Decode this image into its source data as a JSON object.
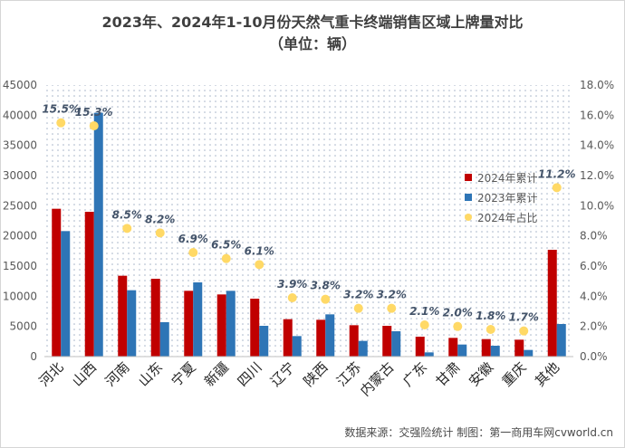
{
  "title_line1": "2023年、2024年1-10月份天然气重卡终端销售区域上牌量对比",
  "title_line2": "（单位：辆）",
  "source": "数据来源：交强险统计  制图：第一商用车网cvworld.cn",
  "colors": {
    "series_2024": "#c00000",
    "series_2023": "#2e75b6",
    "series_share": "#ffd966",
    "share_label": "#44546a",
    "axis_text": "#595959"
  },
  "chart_data": {
    "type": "bar",
    "categories": [
      "河北",
      "山西",
      "河南",
      "山东",
      "宁夏",
      "新疆",
      "四川",
      "辽宁",
      "陕西",
      "江苏",
      "内蒙古",
      "广东",
      "甘肃",
      "安徽",
      "重庆",
      "其他"
    ],
    "series": [
      {
        "name": "2024年累计",
        "values": [
          24500,
          24000,
          13400,
          12900,
          10900,
          10300,
          9600,
          6200,
          6100,
          5200,
          5100,
          3300,
          3100,
          2900,
          2800,
          17700
        ]
      },
      {
        "name": "2023年累计",
        "values": [
          20800,
          40400,
          11000,
          5700,
          12300,
          10900,
          5100,
          3400,
          7000,
          2600,
          4200,
          700,
          2000,
          1800,
          1100,
          5400
        ]
      },
      {
        "name": "2024年占比",
        "type": "scatter",
        "axis": "right",
        "values": [
          15.5,
          15.3,
          8.5,
          8.2,
          6.9,
          6.5,
          6.1,
          3.9,
          3.8,
          3.2,
          3.2,
          2.1,
          2.0,
          1.8,
          1.7,
          11.2
        ]
      }
    ],
    "share_labels": [
      "15.5%",
      "15.3%",
      "8.5%",
      "8.2%",
      "6.9%",
      "6.5%",
      "6.1%",
      "3.9%",
      "3.8%",
      "3.2%",
      "3.2%",
      "2.1%",
      "2.0%",
      "1.8%",
      "1.7%",
      "11.2%"
    ],
    "ylim_left": [
      0,
      45000
    ],
    "yticks_left": [
      "0",
      "5000",
      "10000",
      "15000",
      "20000",
      "25000",
      "30000",
      "35000",
      "40000",
      "45000"
    ],
    "ylim_right": [
      0,
      18
    ],
    "yticks_right": [
      "0.0%",
      "2.0%",
      "4.0%",
      "6.0%",
      "8.0%",
      "10.0%",
      "12.0%",
      "14.0%",
      "16.0%",
      "18.0%"
    ],
    "legend_position": "right",
    "grid": false
  }
}
